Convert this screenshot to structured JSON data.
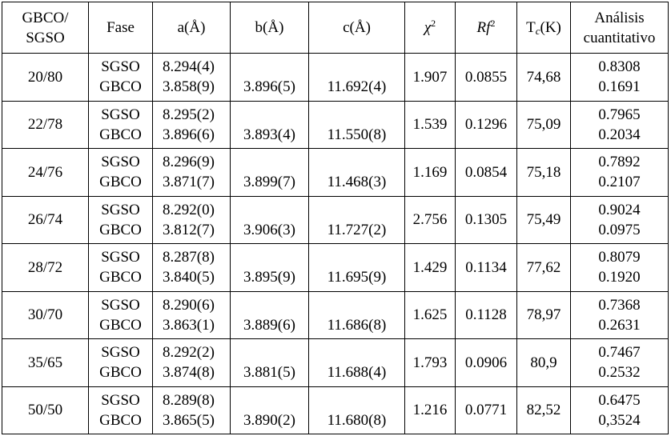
{
  "header": [
    [
      "GBCO/",
      "SGSO"
    ],
    "Fase",
    "a(Å)",
    "b(Å)",
    "c(Å)",
    {
      "text": "χ",
      "sup": "2"
    },
    {
      "text": "Rf",
      "sup": "2"
    },
    {
      "text": "T",
      "sub": "c",
      "rest": "(K)"
    },
    [
      "Análisis",
      "cuantitativo"
    ]
  ],
  "rows": [
    {
      "sample": "20/80",
      "phases": [
        "SGSO",
        "GBCO"
      ],
      "a": [
        "8.294(4)",
        "3.858(9)"
      ],
      "b": "3.896(5)",
      "c": "11.692(4)",
      "chi2": "1.907",
      "rf2": "0.0855",
      "tc": "74,68",
      "quant": [
        "0.8308",
        "0.1691"
      ]
    },
    {
      "sample": "22/78",
      "phases": [
        "SGSO",
        "GBCO"
      ],
      "a": [
        "8.295(2)",
        "3.896(6)"
      ],
      "b": "3.893(4)",
      "c": "11.550(8)",
      "chi2": "1.539",
      "rf2": "0.1296",
      "tc": "75,09",
      "quant": [
        "0.7965",
        "0.2034"
      ]
    },
    {
      "sample": "24/76",
      "phases": [
        "SGSO",
        "GBCO"
      ],
      "a": [
        "8.296(9)",
        "3.871(7)"
      ],
      "b": "3.899(7)",
      "c": "11.468(3)",
      "chi2": "1.169",
      "rf2": "0.0854",
      "tc": "75,18",
      "quant": [
        "0.7892",
        "0.2107"
      ]
    },
    {
      "sample": "26/74",
      "phases": [
        "SGSO",
        "GBCO"
      ],
      "a": [
        "8.292(0)",
        "3.812(7)"
      ],
      "b": "3.906(3)",
      "c": "11.727(2)",
      "chi2": "2.756",
      "rf2": "0.1305",
      "tc": "75,49",
      "quant": [
        "0.9024",
        "0.0975"
      ]
    },
    {
      "sample": "28/72",
      "phases": [
        "SGSO",
        "GBCO"
      ],
      "a": [
        "8.287(8)",
        "3.840(5)"
      ],
      "b": "3.895(9)",
      "c": "11.695(9)",
      "chi2": "1.429",
      "rf2": "0.1134",
      "tc": "77,62",
      "quant": [
        "0.8079",
        "0.1920"
      ]
    },
    {
      "sample": "30/70",
      "phases": [
        "SGSO",
        "GBCO"
      ],
      "a": [
        "8.290(6)",
        "3.863(1)"
      ],
      "b": "3.889(6)",
      "c": "11.686(8)",
      "chi2": "1.625",
      "rf2": "0.1128",
      "tc": "78,97",
      "quant": [
        "0.7368",
        "0.2631"
      ]
    },
    {
      "sample": "35/65",
      "phases": [
        "SGSO",
        "GBCO"
      ],
      "a": [
        "8.292(2)",
        "3.874(8)"
      ],
      "b": "3.881(5)",
      "c": "11.688(4)",
      "chi2": "1.793",
      "rf2": "0.0906",
      "tc": "80,9",
      "quant": [
        "0.7467",
        "0.2532"
      ]
    },
    {
      "sample": "50/50",
      "phases": [
        "SGSO",
        "GBCO"
      ],
      "a": [
        "8.289(8)",
        "3.865(5)"
      ],
      "b": "3.890(2)",
      "c": "11.680(8)",
      "chi2": "1.216",
      "rf2": "0.0771",
      "tc": "82,52",
      "quant": [
        "0.6475",
        "0,3524"
      ]
    }
  ]
}
